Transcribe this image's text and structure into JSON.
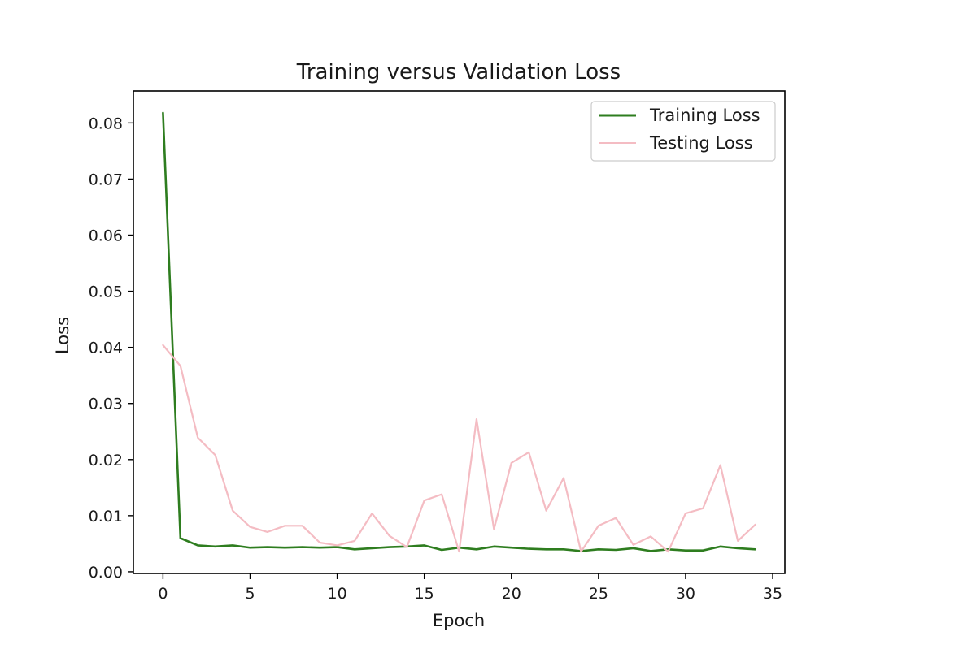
{
  "chart_data": {
    "type": "line",
    "title": "Training versus Validation Loss",
    "xlabel": "Epoch",
    "ylabel": "Loss",
    "xlim": [
      -1.7,
      35.7
    ],
    "ylim": [
      -0.0003,
      0.0857
    ],
    "xticks": [
      0,
      5,
      10,
      15,
      20,
      25,
      30,
      35
    ],
    "xtick_labels": [
      "0",
      "5",
      "10",
      "15",
      "20",
      "25",
      "30",
      "35"
    ],
    "yticks": [
      0.0,
      0.01,
      0.02,
      0.03,
      0.04,
      0.05,
      0.06,
      0.07,
      0.08
    ],
    "ytick_labels": [
      "0.00",
      "0.01",
      "0.02",
      "0.03",
      "0.04",
      "0.05",
      "0.06",
      "0.07",
      "0.08"
    ],
    "grid": false,
    "legend_position": "top-right",
    "x": [
      0,
      1,
      2,
      3,
      4,
      5,
      6,
      7,
      8,
      9,
      10,
      11,
      12,
      13,
      14,
      15,
      16,
      17,
      18,
      19,
      20,
      21,
      22,
      23,
      24,
      25,
      26,
      27,
      28,
      29,
      30,
      31,
      32,
      33,
      34
    ],
    "series": [
      {
        "name": "Training Loss",
        "color": "#2e7d1f",
        "values": [
          0.0818,
          0.006,
          0.0047,
          0.0045,
          0.0047,
          0.0043,
          0.0044,
          0.0043,
          0.0044,
          0.0043,
          0.0044,
          0.004,
          0.0042,
          0.0044,
          0.0045,
          0.0047,
          0.0039,
          0.0043,
          0.004,
          0.0045,
          0.0043,
          0.0041,
          0.004,
          0.004,
          0.0037,
          0.004,
          0.0039,
          0.0042,
          0.0037,
          0.004,
          0.0038,
          0.0038,
          0.0045,
          0.0042,
          0.004
        ]
      },
      {
        "name": "Testing Loss",
        "color": "#f4bcc3",
        "values": [
          0.0404,
          0.0367,
          0.0239,
          0.0208,
          0.0109,
          0.008,
          0.0071,
          0.0082,
          0.0082,
          0.0052,
          0.0047,
          0.0055,
          0.0104,
          0.0064,
          0.0044,
          0.0127,
          0.0138,
          0.0036,
          0.0272,
          0.0076,
          0.0194,
          0.0213,
          0.0109,
          0.0167,
          0.0036,
          0.0082,
          0.0096,
          0.0048,
          0.0063,
          0.0036,
          0.0104,
          0.0113,
          0.019,
          0.0055,
          0.0084
        ]
      }
    ]
  }
}
